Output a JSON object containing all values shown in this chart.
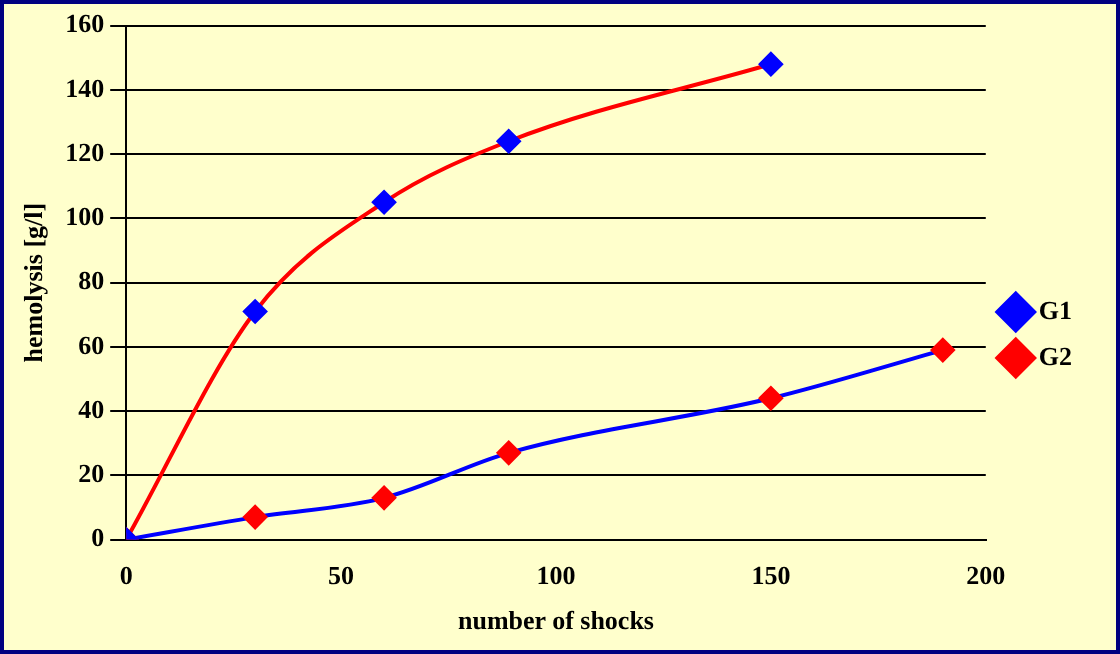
{
  "chart_data": {
    "type": "line",
    "xlabel": "number of shocks",
    "ylabel": "hemolysis [g/l]",
    "xlim": [
      0,
      200
    ],
    "xticks": [
      0,
      50,
      100,
      150,
      200
    ],
    "ylim": [
      0,
      160
    ],
    "yticks": [
      0,
      20,
      40,
      60,
      80,
      100,
      120,
      140,
      160
    ],
    "grid": "y",
    "legend": "right",
    "marker": "diamond",
    "series": [
      {
        "name": "G1",
        "color": "#ff0000",
        "x": [
          0,
          30,
          60,
          89,
          150
        ],
        "values": [
          0,
          71,
          105,
          124,
          148
        ]
      },
      {
        "name": "G2",
        "color": "#0000ff",
        "x": [
          0,
          30,
          60,
          89,
          150,
          190
        ],
        "values": [
          0,
          7,
          13,
          27,
          44,
          59
        ]
      }
    ]
  }
}
